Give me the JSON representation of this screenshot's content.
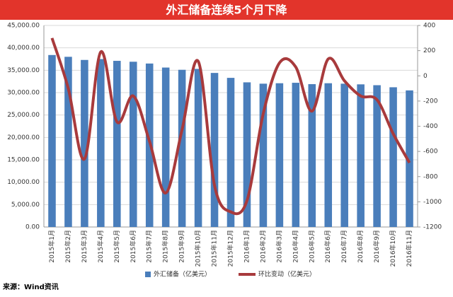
{
  "chart_data": {
    "type": "combo",
    "title": "外汇储备连续5个月下降",
    "categories": [
      "2015年1月",
      "2015年2月",
      "2015年3月",
      "2015年4月",
      "2015年5月",
      "2015年6月",
      "2015年7月",
      "2015年8月",
      "2015年9月",
      "2015年10月",
      "2015年11月",
      "2015年12月",
      "2016年1月",
      "2016年2月",
      "2016年3月",
      "2016年4月",
      "2016年5月",
      "2016年6月",
      "2016年7月",
      "2016年8月",
      "2016年9月",
      "2016年10月",
      "2016年11月"
    ],
    "series": [
      {
        "name": "外汇储备（亿美元）",
        "type": "bar",
        "color": "#4a7ebb",
        "values": [
          38400,
          38000,
          37300,
          37500,
          37100,
          36900,
          36500,
          35600,
          35100,
          35300,
          34400,
          33300,
          32300,
          32000,
          32100,
          32200,
          31900,
          32100,
          32000,
          31850,
          31660,
          31200,
          30500
        ]
      },
      {
        "name": "环比变动（亿美元）",
        "type": "line",
        "axis": "y2",
        "color": "#a83a3c",
        "values": [
          300,
          -100,
          -660,
          190,
          -365,
          -160,
          -520,
          -930,
          -430,
          115,
          -870,
          -1080,
          -990,
          -300,
          103,
          70,
          -280,
          134,
          -40,
          -160,
          -190,
          -460,
          -690
        ]
      }
    ],
    "ylim": [
      0,
      45000
    ],
    "yticks": [
      {
        "value": 0,
        "label": "0.00"
      },
      {
        "value": 5000,
        "label": "5,000.00"
      },
      {
        "value": 10000,
        "label": "10,000.00"
      },
      {
        "value": 15000,
        "label": "15,000.00"
      },
      {
        "value": 20000,
        "label": "20,000.00"
      },
      {
        "value": 25000,
        "label": "25,000.00"
      },
      {
        "value": 30000,
        "label": "30,000.00"
      },
      {
        "value": 35000,
        "label": "35,000.00"
      },
      {
        "value": 40000,
        "label": "40,000.00"
      },
      {
        "value": 45000,
        "label": "45,000.00"
      }
    ],
    "y2lim": [
      -1200,
      400
    ],
    "y2ticks": [
      -1200,
      -1000,
      -800,
      -600,
      -400,
      -200,
      0,
      200,
      400
    ],
    "grid": true,
    "legend": "bottom"
  },
  "source": "来源：Wind资讯"
}
